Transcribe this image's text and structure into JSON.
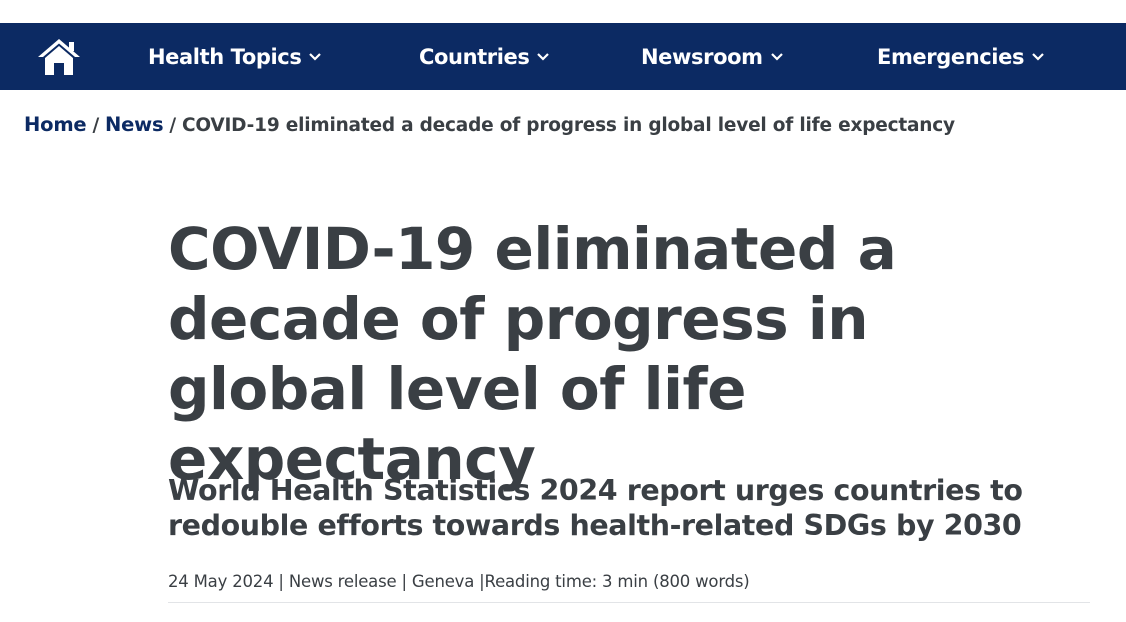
{
  "nav": {
    "home_icon": "home-icon",
    "items": [
      {
        "label": "Health Topics",
        "icon": "chevron-down-icon"
      },
      {
        "label": "Countries",
        "icon": "chevron-down-icon"
      },
      {
        "label": "Newsroom",
        "icon": "chevron-down-icon"
      },
      {
        "label": "Emergencies",
        "icon": "chevron-down-icon"
      }
    ],
    "colors": {
      "background": "#0c2a63",
      "text": "#ffffff"
    }
  },
  "breadcrumb": {
    "home": "Home",
    "separator1": "/",
    "news": "News",
    "separator2": "/",
    "current": "COVID-19 eliminated a decade of progress in global level of life expectancy"
  },
  "article": {
    "title": "COVID-19 eliminated a decade of progress in global level of life expectancy",
    "subtitle": "World Health Statistics 2024 report urges countries to redouble efforts towards health-related SDGs by 2030",
    "meta": {
      "date": "24 May 2024",
      "sep1": " | ",
      "type": "News release",
      "sep2": " | ",
      "location": "Geneva",
      "sep3": " |",
      "reading_time": "Reading time: 3 min (800 words)"
    }
  },
  "colors": {
    "text": "#3a3f44",
    "link": "#0c2a63",
    "divider": "#e2e4e7"
  }
}
